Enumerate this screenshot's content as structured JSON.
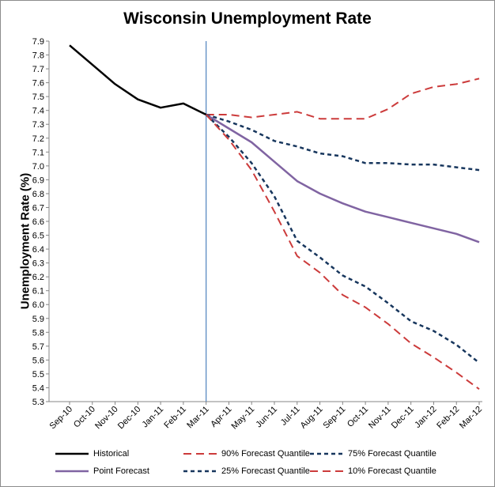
{
  "chart_data": {
    "type": "line",
    "title": "Wisconsin Unemployment Rate",
    "xlabel": "",
    "ylabel": "Unemployment Rate (%)",
    "categories": [
      "Sep-10",
      "Oct-10",
      "Nov-10",
      "Dec-10",
      "Jan-11",
      "Feb-11",
      "Mar-11",
      "Apr-11",
      "May-11",
      "Jun-11",
      "Jul-11",
      "Aug-11",
      "Sep-11",
      "Oct-11",
      "Nov-11",
      "Dec-11",
      "Jan-12",
      "Feb-12",
      "Mar-12"
    ],
    "ylim": [
      5.3,
      7.9
    ],
    "yticks": [
      "7.9",
      "7.8",
      "7.7",
      "7.6",
      "7.5",
      "7.4",
      "7.3",
      "7.2",
      "7.1",
      "7.0",
      "6.9",
      "6.8",
      "6.7",
      "6.6",
      "6.5",
      "6.4",
      "6.3",
      "6.2",
      "6.1",
      "6.0",
      "5.9",
      "5.8",
      "5.7",
      "5.6",
      "5.5",
      "5.4",
      "5.3"
    ],
    "forecast_start": "Mar-11",
    "series": [
      {
        "name": "Historical",
        "color": "#000000",
        "dash": "solid",
        "values": [
          7.87,
          7.73,
          7.59,
          7.48,
          7.42,
          7.45,
          7.37,
          null,
          null,
          null,
          null,
          null,
          null,
          null,
          null,
          null,
          null,
          null,
          null
        ]
      },
      {
        "name": "90% Forecast Quantile",
        "color": "#cc3b3b",
        "dash": "long",
        "values": [
          null,
          null,
          null,
          null,
          null,
          null,
          7.37,
          7.37,
          7.35,
          7.37,
          7.39,
          7.34,
          7.34,
          7.34,
          7.41,
          7.52,
          7.57,
          7.59,
          7.63
        ]
      },
      {
        "name": "75% Forecast Quantile",
        "color": "#17365d",
        "dash": "short",
        "values": [
          null,
          null,
          null,
          null,
          null,
          null,
          7.37,
          7.32,
          7.26,
          7.18,
          7.14,
          7.09,
          7.07,
          7.02,
          7.02,
          7.01,
          7.01,
          6.99,
          6.97
        ]
      },
      {
        "name": "Point Forecast",
        "color": "#8064a2",
        "dash": "solid",
        "values": [
          null,
          null,
          null,
          null,
          null,
          null,
          7.37,
          7.27,
          7.17,
          7.03,
          6.89,
          6.8,
          6.73,
          6.67,
          6.63,
          6.59,
          6.55,
          6.51,
          6.45
        ]
      },
      {
        "name": "25% Forecast Quantile",
        "color": "#17365d",
        "dash": "short",
        "values": [
          null,
          null,
          null,
          null,
          null,
          null,
          7.37,
          7.21,
          7.02,
          6.78,
          6.46,
          6.34,
          6.21,
          6.13,
          6.01,
          5.88,
          5.81,
          5.71,
          5.58
        ]
      },
      {
        "name": "10% Forecast Quantile",
        "color": "#cc3b3b",
        "dash": "long",
        "values": [
          null,
          null,
          null,
          null,
          null,
          null,
          7.37,
          7.19,
          6.97,
          6.67,
          6.35,
          6.23,
          6.07,
          5.98,
          5.86,
          5.72,
          5.62,
          5.51,
          5.39
        ]
      }
    ]
  }
}
